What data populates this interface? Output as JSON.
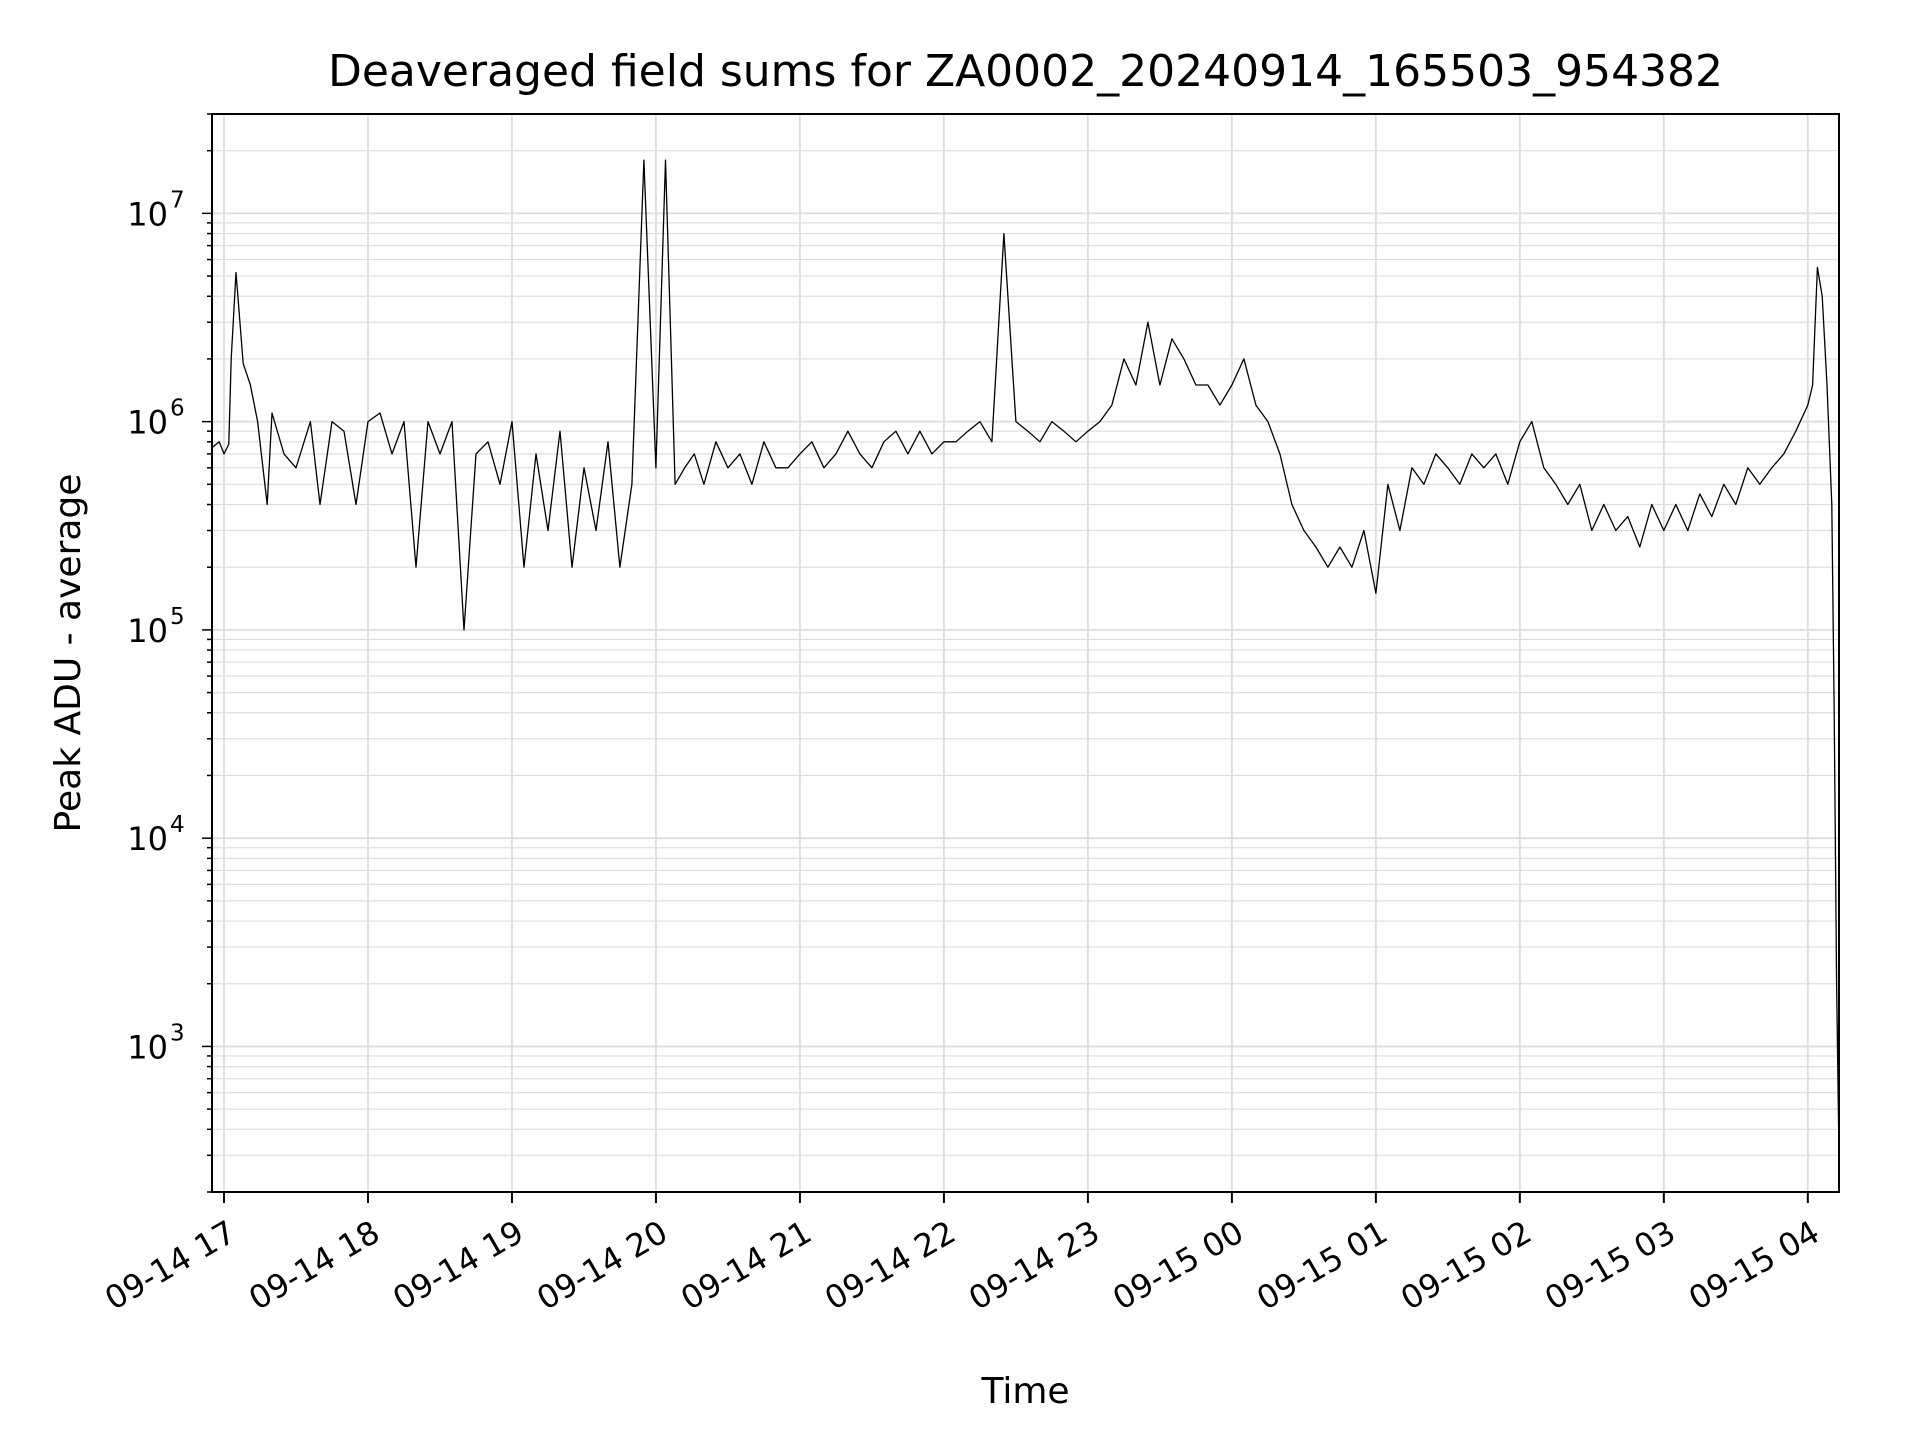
{
  "chart_data": {
    "type": "line",
    "title": "Deaveraged field sums for ZA0002_20240914_165503_954382",
    "xlabel": "Time",
    "ylabel": "Peak ADU - average",
    "yscale": "log",
    "ylim": [
      200,
      30000000
    ],
    "xlim": [
      "09-14 16:55",
      "09-15 04:13"
    ],
    "grid": true,
    "legend": "none",
    "line_color": "#000000",
    "grid_color": "#dddddd",
    "x_ticks": [
      {
        "time": "09-14 17:00",
        "label": "09-14 17"
      },
      {
        "time": "09-14 18:00",
        "label": "09-14 18"
      },
      {
        "time": "09-14 19:00",
        "label": "09-14 19"
      },
      {
        "time": "09-14 20:00",
        "label": "09-14 20"
      },
      {
        "time": "09-14 21:00",
        "label": "09-14 21"
      },
      {
        "time": "09-14 22:00",
        "label": "09-14 22"
      },
      {
        "time": "09-14 23:00",
        "label": "09-14 23"
      },
      {
        "time": "09-15 00:00",
        "label": "09-15 00"
      },
      {
        "time": "09-15 01:00",
        "label": "09-15 01"
      },
      {
        "time": "09-15 02:00",
        "label": "09-15 02"
      },
      {
        "time": "09-15 03:00",
        "label": "09-15 03"
      },
      {
        "time": "09-15 04:00",
        "label": "09-15 04"
      }
    ],
    "y_ticks": [
      {
        "value": 1000,
        "base": "10",
        "exp": "3"
      },
      {
        "value": 10000,
        "base": "10",
        "exp": "4"
      },
      {
        "value": 100000,
        "base": "10",
        "exp": "5"
      },
      {
        "value": 1000000,
        "base": "10",
        "exp": "6"
      },
      {
        "value": 10000000,
        "base": "10",
        "exp": "7"
      }
    ],
    "series": [
      {
        "x": [
          "09-14 16:55",
          "09-14 16:58",
          "09-14 17:00",
          "09-14 17:02",
          "09-14 17:03",
          "09-14 17:05",
          "09-14 17:08",
          "09-14 17:11",
          "09-14 17:14",
          "09-14 17:18",
          "09-14 17:20",
          "09-14 17:25",
          "09-14 17:30",
          "09-14 17:36",
          "09-14 17:40",
          "09-14 17:45",
          "09-14 17:50",
          "09-14 17:55",
          "09-14 18:00",
          "09-14 18:05",
          "09-14 18:10",
          "09-14 18:15",
          "09-14 18:20",
          "09-14 18:25",
          "09-14 18:30",
          "09-14 18:35",
          "09-14 18:40",
          "09-14 18:45",
          "09-14 18:50",
          "09-14 18:55",
          "09-14 19:00",
          "09-14 19:05",
          "09-14 19:10",
          "09-14 19:15",
          "09-14 19:20",
          "09-14 19:25",
          "09-14 19:30",
          "09-14 19:35",
          "09-14 19:40",
          "09-14 19:45",
          "09-14 19:50",
          "09-14 19:55",
          "09-14 20:00",
          "09-14 20:04",
          "09-14 20:08",
          "09-14 20:12",
          "09-14 20:16",
          "09-14 20:20",
          "09-14 20:25",
          "09-14 20:30",
          "09-14 20:35",
          "09-14 20:40",
          "09-14 20:45",
          "09-14 20:50",
          "09-14 20:55",
          "09-14 21:00",
          "09-14 21:05",
          "09-14 21:10",
          "09-14 21:15",
          "09-14 21:20",
          "09-14 21:25",
          "09-14 21:30",
          "09-14 21:35",
          "09-14 21:40",
          "09-14 21:45",
          "09-14 21:50",
          "09-14 21:55",
          "09-14 22:00",
          "09-14 22:05",
          "09-14 22:10",
          "09-14 22:15",
          "09-14 22:20",
          "09-14 22:25",
          "09-14 22:30",
          "09-14 22:35",
          "09-14 22:40",
          "09-14 22:45",
          "09-14 22:50",
          "09-14 22:55",
          "09-14 23:00",
          "09-14 23:05",
          "09-14 23:10",
          "09-14 23:15",
          "09-14 23:20",
          "09-14 23:25",
          "09-14 23:30",
          "09-14 23:35",
          "09-14 23:40",
          "09-14 23:45",
          "09-14 23:50",
          "09-14 23:55",
          "09-15 00:00",
          "09-15 00:05",
          "09-15 00:10",
          "09-15 00:15",
          "09-15 00:20",
          "09-15 00:25",
          "09-15 00:30",
          "09-15 00:35",
          "09-15 00:40",
          "09-15 00:45",
          "09-15 00:50",
          "09-15 00:55",
          "09-15 01:00",
          "09-15 01:05",
          "09-15 01:10",
          "09-15 01:15",
          "09-15 01:20",
          "09-15 01:25",
          "09-15 01:30",
          "09-15 01:35",
          "09-15 01:40",
          "09-15 01:45",
          "09-15 01:50",
          "09-15 01:55",
          "09-15 02:00",
          "09-15 02:05",
          "09-15 02:10",
          "09-15 02:15",
          "09-15 02:20",
          "09-15 02:25",
          "09-15 02:30",
          "09-15 02:35",
          "09-15 02:40",
          "09-15 02:45",
          "09-15 02:50",
          "09-15 02:55",
          "09-15 03:00",
          "09-15 03:05",
          "09-15 03:10",
          "09-15 03:15",
          "09-15 03:20",
          "09-15 03:25",
          "09-15 03:30",
          "09-15 03:35",
          "09-15 03:40",
          "09-15 03:45",
          "09-15 03:50",
          "09-15 03:55",
          "09-15 04:00",
          "09-15 04:02",
          "09-15 04:04",
          "09-15 04:06",
          "09-15 04:08",
          "09-15 04:10",
          "09-15 04:11",
          "09-15 04:12",
          "09-15 04:13"
        ],
        "y": [
          750000,
          800000,
          700000,
          780000,
          2000000,
          5200000,
          1900000,
          1500000,
          1000000,
          400000,
          1100000,
          700000,
          600000,
          1000000,
          400000,
          1000000,
          900000,
          400000,
          1000000,
          1100000,
          700000,
          1000000,
          200000,
          1000000,
          700000,
          1000000,
          100000,
          700000,
          800000,
          500000,
          1000000,
          200000,
          700000,
          300000,
          900000,
          200000,
          600000,
          300000,
          800000,
          200000,
          500000,
          18000000,
          600000,
          18000000,
          500000,
          600000,
          700000,
          500000,
          800000,
          600000,
          700000,
          500000,
          800000,
          600000,
          600000,
          700000,
          800000,
          600000,
          700000,
          900000,
          700000,
          600000,
          800000,
          900000,
          700000,
          900000,
          700000,
          800000,
          800000,
          900000,
          1000000,
          800000,
          8000000,
          1000000,
          900000,
          800000,
          1000000,
          900000,
          800000,
          900000,
          1000000,
          1200000,
          2000000,
          1500000,
          3000000,
          1500000,
          2500000,
          2000000,
          1500000,
          1500000,
          1200000,
          1500000,
          2000000,
          1200000,
          1000000,
          700000,
          400000,
          300000,
          250000,
          200000,
          250000,
          200000,
          300000,
          150000,
          500000,
          300000,
          600000,
          500000,
          700000,
          600000,
          500000,
          700000,
          600000,
          700000,
          500000,
          800000,
          1000000,
          600000,
          500000,
          400000,
          500000,
          300000,
          400000,
          300000,
          350000,
          250000,
          400000,
          300000,
          400000,
          300000,
          450000,
          350000,
          500000,
          400000,
          600000,
          500000,
          600000,
          700000,
          900000,
          1200000,
          1500000,
          5500000,
          4000000,
          1500000,
          400000,
          40000,
          2000,
          300
        ],
        "color": "#000000"
      }
    ]
  }
}
